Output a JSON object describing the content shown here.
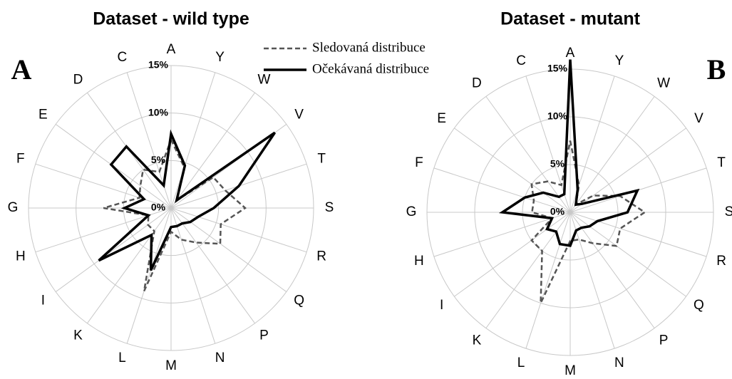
{
  "chart_data": [
    {
      "type": "radar",
      "title": "Dataset - wild type",
      "panel_label": "A",
      "categories": [
        "A",
        "Y",
        "W",
        "V",
        "T",
        "S",
        "R",
        "Q",
        "P",
        "N",
        "M",
        "L",
        "K",
        "I",
        "H",
        "G",
        "F",
        "E",
        "D",
        "C"
      ],
      "rlim": [
        0,
        15
      ],
      "rticks": [
        {
          "value": 0,
          "label": "0%"
        },
        {
          "value": 5,
          "label": "5%"
        },
        {
          "value": 10,
          "label": "10%"
        },
        {
          "value": 15,
          "label": "15%"
        }
      ],
      "series": [
        {
          "name": "Sledovaná distribuce",
          "color": "#555555",
          "dashed": true,
          "values": [
            7.2,
            4.5,
            1,
            5.5,
            6,
            7.8,
            5.5,
            6.4,
            4.5,
            3.5,
            2.5,
            9.2,
            3,
            3,
            2.5,
            7.1,
            3.5,
            4,
            5,
            4
          ]
        },
        {
          "name": "Očekávaná distribuce",
          "color": "#000000",
          "dashed": false,
          "values": [
            7.8,
            4.7,
            1,
            13.5,
            7.5,
            4.5,
            3,
            2.5,
            2,
            2,
            2,
            6.9,
            3.5,
            9.4,
            2.5,
            4.9,
            3,
            7.8,
            8,
            2.5
          ]
        }
      ]
    },
    {
      "type": "radar",
      "title": "Dataset - mutant",
      "panel_label": "B",
      "categories": [
        "A",
        "Y",
        "W",
        "V",
        "T",
        "S",
        "R",
        "Q",
        "P",
        "N",
        "M",
        "L",
        "K",
        "I",
        "H",
        "G",
        "F",
        "E",
        "D",
        "C"
      ],
      "rlim": [
        0,
        15
      ],
      "rticks": [
        {
          "value": 0,
          "label": "0%"
        },
        {
          "value": 5,
          "label": "5%"
        },
        {
          "value": 10,
          "label": "10%"
        },
        {
          "value": 15,
          "label": "15%"
        }
      ],
      "series": [
        {
          "color": "#555555",
          "dashed": true,
          "values": [
            7.5,
            3,
            1,
            3,
            5.5,
            7.8,
            5.5,
            6,
            4,
            3,
            3,
            10,
            5,
            5,
            2,
            4,
            4,
            5,
            4,
            3
          ]
        },
        {
          "color": "#000000",
          "dashed": false,
          "values": [
            16,
            2.5,
            1,
            1.5,
            7.4,
            6,
            3,
            2.5,
            2,
            2,
            3.5,
            3.5,
            2.5,
            3,
            2,
            7.1,
            5,
            3.5,
            2,
            2
          ]
        }
      ]
    }
  ]
}
